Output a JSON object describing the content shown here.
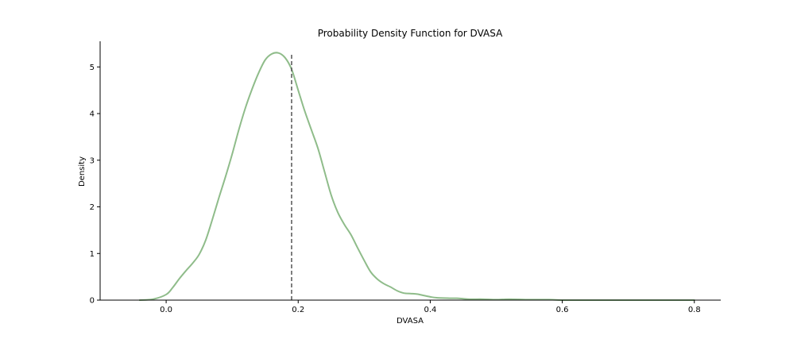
{
  "chart_data": {
    "type": "line",
    "title": "Probability Density Function for DVASA",
    "xlabel": "DVASA",
    "ylabel": "Density",
    "xlim": [
      -0.1,
      0.84
    ],
    "ylim": [
      0,
      5.55
    ],
    "xticks": [
      0.0,
      0.2,
      0.4,
      0.6,
      0.8
    ],
    "xtick_labels": [
      "0.0",
      "0.2",
      "0.4",
      "0.6",
      "0.8"
    ],
    "yticks": [
      0,
      1,
      2,
      3,
      4,
      5
    ],
    "ytick_labels": [
      "0",
      "1",
      "2",
      "3",
      "4",
      "5"
    ],
    "grid": false,
    "series": [
      {
        "color": "#8fbc8a",
        "x": [
          -0.04,
          -0.02,
          0.0,
          0.01,
          0.02,
          0.03,
          0.04,
          0.05,
          0.06,
          0.07,
          0.08,
          0.09,
          0.1,
          0.11,
          0.12,
          0.13,
          0.14,
          0.15,
          0.16,
          0.17,
          0.18,
          0.19,
          0.2,
          0.21,
          0.22,
          0.23,
          0.24,
          0.25,
          0.26,
          0.27,
          0.28,
          0.29,
          0.3,
          0.31,
          0.32,
          0.33,
          0.34,
          0.35,
          0.36,
          0.37,
          0.38,
          0.39,
          0.4,
          0.41,
          0.43,
          0.44,
          0.45,
          0.46,
          0.48,
          0.5,
          0.52,
          0.55,
          0.58,
          0.6,
          0.62,
          0.65,
          0.7,
          0.75,
          0.8
        ],
        "y": [
          0.0,
          0.02,
          0.12,
          0.27,
          0.46,
          0.63,
          0.79,
          0.98,
          1.29,
          1.73,
          2.2,
          2.65,
          3.13,
          3.65,
          4.12,
          4.52,
          4.87,
          5.15,
          5.28,
          5.3,
          5.2,
          4.95,
          4.5,
          4.05,
          3.65,
          3.25,
          2.75,
          2.25,
          1.88,
          1.62,
          1.4,
          1.12,
          0.85,
          0.6,
          0.45,
          0.35,
          0.28,
          0.2,
          0.15,
          0.14,
          0.13,
          0.1,
          0.07,
          0.05,
          0.04,
          0.04,
          0.03,
          0.02,
          0.02,
          0.01,
          0.02,
          0.01,
          0.01,
          0.0,
          0.0,
          0.0,
          0.0,
          0.0,
          0.0
        ]
      }
    ],
    "vline": {
      "x": 0.19,
      "ymax": 5.3,
      "style": "dashed",
      "color": "#555555"
    }
  }
}
